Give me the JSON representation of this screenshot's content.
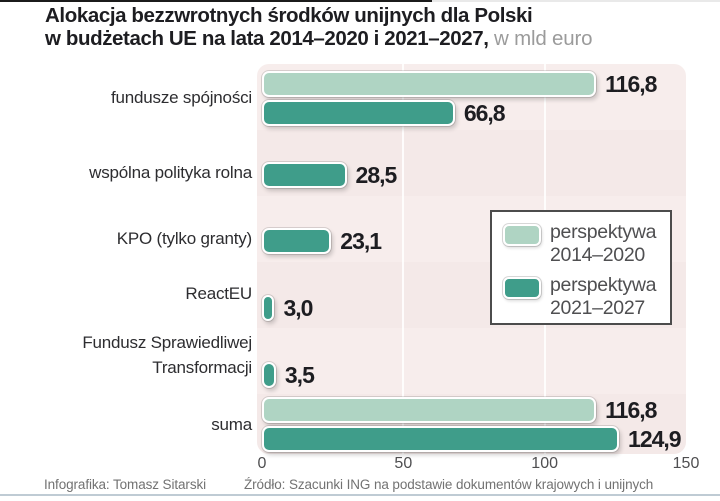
{
  "title": {
    "line1": "Alokacja bezzwrotnych środków unijnych dla Polski",
    "line2_bold": "w budżetach UE na lata 2014–2020 i 2021–2027,",
    "line2_light": " w mld euro"
  },
  "chart_data": {
    "type": "bar",
    "orientation": "horizontal",
    "unit": "mld euro",
    "categories": [
      "fundusze spójności",
      "wspólna polityka rolna",
      "KPO (tylko granty)",
      "ReactEU",
      "Fundusz Sprawiedliwej Transformacji",
      "suma"
    ],
    "series": [
      {
        "name": "perspektywa 2014–2020",
        "color": "#afd4c3",
        "values": [
          116.8,
          null,
          null,
          null,
          null,
          116.8
        ]
      },
      {
        "name": "perspektywa 2021–2027",
        "color": "#3f9d8a",
        "values": [
          66.8,
          28.5,
          23.1,
          3.0,
          3.5,
          124.9
        ]
      }
    ],
    "value_labels": [
      [
        "116,8",
        "66,8"
      ],
      [
        "28,5"
      ],
      [
        "23,1"
      ],
      [
        "3,0"
      ],
      [
        "3,5"
      ],
      [
        "116,8",
        "124,9"
      ]
    ],
    "xlim": [
      0,
      150
    ],
    "xticks": [
      "0",
      "50",
      "100",
      "150"
    ],
    "grid": "vertical-white-lines",
    "legend_position": "middle-right",
    "plot_background": "#f7edec"
  },
  "legend": {
    "entries": [
      {
        "line1": "perspektywa",
        "line2": "2014–2020",
        "color": "#afd4c3"
      },
      {
        "line1": "perspektywa",
        "line2": "2021–2027",
        "color": "#3f9d8a"
      }
    ]
  },
  "footer": {
    "credit": "Infografika: Tomasz Sitarski",
    "source": "Źródło: Szacunki ING na podstawie dokumentów krajowych i unijnych"
  },
  "colors": {
    "series_2014_2020": "#afd4c3",
    "series_2021_2027": "#3f9d8a",
    "plot_background": "#f7edec",
    "title_text": "#1d1d21",
    "muted_title": "#9b9b9b",
    "axis_text": "#4f4f51",
    "footer_text": "#727272",
    "legend_border": "#4c4c4c",
    "bottom_rule": "#bfcbd4"
  }
}
